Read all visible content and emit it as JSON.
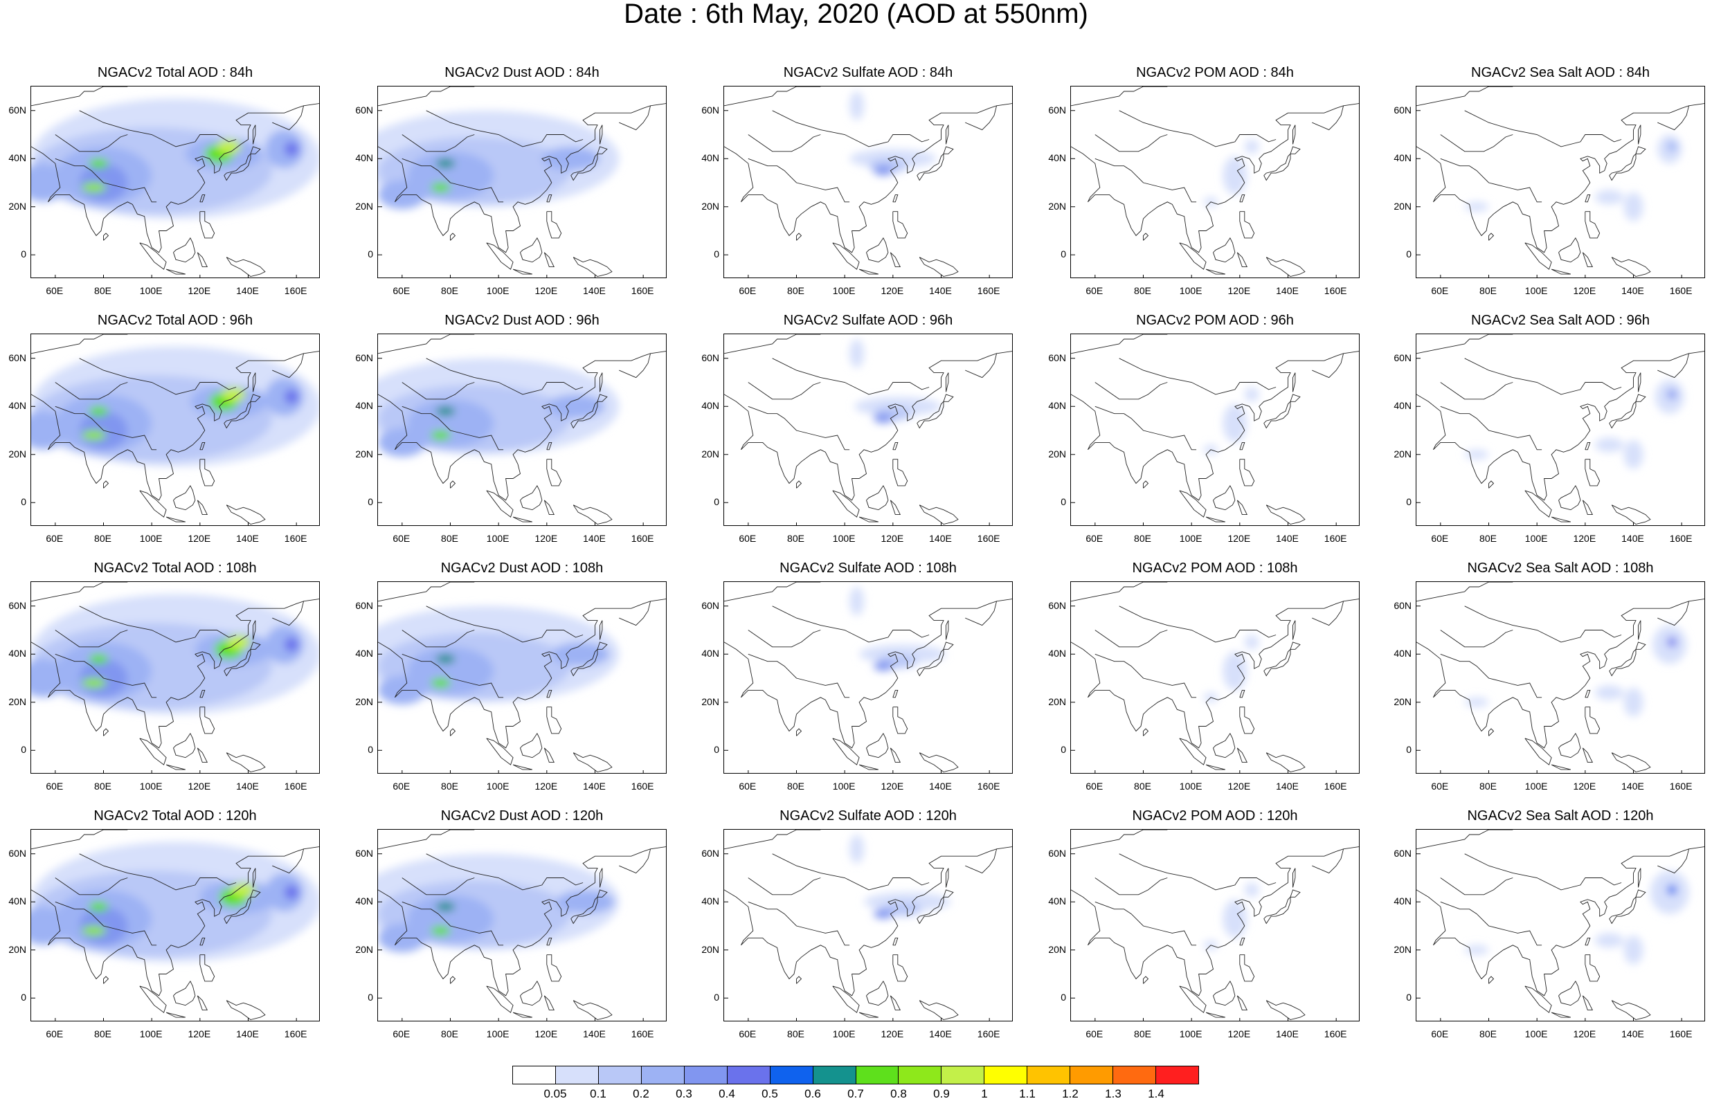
{
  "title": "Date : 6th May, 2020 (AOD at 550nm)",
  "lat_ticks": [
    "60N",
    "40N",
    "20N",
    "0"
  ],
  "lon_ticks": [
    "60E",
    "80E",
    "100E",
    "120E",
    "140E",
    "160E"
  ],
  "panels": [
    [
      {
        "title": "NGACv2 Total AOD : 84h",
        "field": "total"
      },
      {
        "title": "NGACv2 Dust AOD : 84h",
        "field": "dust"
      },
      {
        "title": "NGACv2 Sulfate AOD : 84h",
        "field": "sulfate"
      },
      {
        "title": "NGACv2 POM AOD : 84h",
        "field": "pom"
      },
      {
        "title": "NGACv2 Sea Salt AOD : 84h",
        "field": "seasalt"
      }
    ],
    [
      {
        "title": "NGACv2 Total AOD : 96h",
        "field": "total"
      },
      {
        "title": "NGACv2 Dust AOD : 96h",
        "field": "dust"
      },
      {
        "title": "NGACv2 Sulfate AOD : 96h",
        "field": "sulfate"
      },
      {
        "title": "NGACv2 POM AOD : 96h",
        "field": "pom"
      },
      {
        "title": "NGACv2 Sea Salt AOD : 96h",
        "field": "seasalt"
      }
    ],
    [
      {
        "title": "NGACv2 Total AOD : 108h",
        "field": "total"
      },
      {
        "title": "NGACv2 Dust AOD : 108h",
        "field": "dust"
      },
      {
        "title": "NGACv2 Sulfate AOD : 108h",
        "field": "sulfate"
      },
      {
        "title": "NGACv2 POM AOD : 108h",
        "field": "pom"
      },
      {
        "title": "NGACv2 Sea Salt AOD : 108h",
        "field": "seasalt"
      }
    ],
    [
      {
        "title": "NGACv2 Total AOD : 120h",
        "field": "total"
      },
      {
        "title": "NGACv2 Dust AOD : 120h",
        "field": "dust"
      },
      {
        "title": "NGACv2 Sulfate AOD : 120h",
        "field": "sulfate"
      },
      {
        "title": "NGACv2 POM AOD : 120h",
        "field": "pom"
      },
      {
        "title": "NGACv2 Sea Salt  AOD : 120h",
        "field": "seasalt"
      }
    ]
  ],
  "colorbar": {
    "labels": [
      "0.05",
      "0.1",
      "0.2",
      "0.3",
      "0.4",
      "0.5",
      "0.6",
      "0.7",
      "0.8",
      "0.9",
      "1",
      "1.1",
      "1.2",
      "1.3",
      "1.4"
    ],
    "colors": [
      "#ffffff",
      "#d7e0fb",
      "#b9c8f7",
      "#9db2f4",
      "#8196f0",
      "#6a72ec",
      "#0f62ee",
      "#14928e",
      "#5ee01c",
      "#8ee81b",
      "#c3f049",
      "#ffff00",
      "#ffc300",
      "#ff9b00",
      "#ff6a10",
      "#ff1f1f"
    ]
  }
}
